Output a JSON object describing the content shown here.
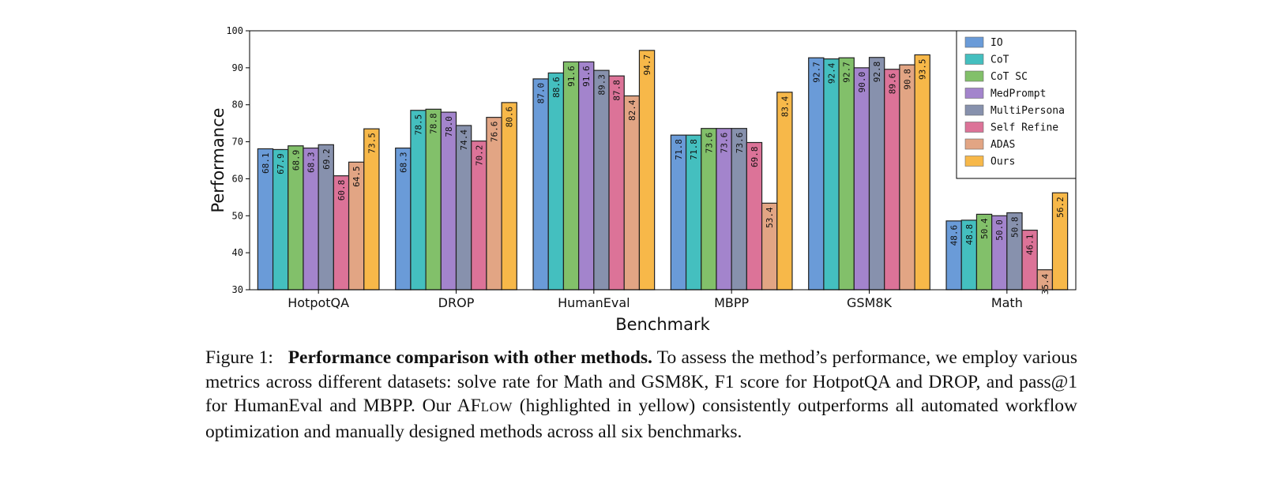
{
  "chart_data": {
    "type": "bar",
    "categories": [
      "HotpotQA",
      "DROP",
      "HumanEval",
      "MBPP",
      "GSM8K",
      "Math"
    ],
    "series": [
      {
        "name": "IO",
        "color": "#6a9bd8",
        "values": [
          68.1,
          68.3,
          87.0,
          71.8,
          92.7,
          48.6
        ]
      },
      {
        "name": "CoT",
        "color": "#44bfbf",
        "values": [
          67.9,
          78.5,
          88.6,
          71.8,
          92.4,
          48.8
        ]
      },
      {
        "name": "CoT SC",
        "color": "#82c06a",
        "values": [
          68.9,
          78.8,
          91.6,
          73.6,
          92.7,
          50.4
        ]
      },
      {
        "name": "MedPrompt",
        "color": "#a384cc",
        "values": [
          68.3,
          78.0,
          91.6,
          73.6,
          90.0,
          50.0
        ]
      },
      {
        "name": "MultiPersona",
        "color": "#8791ad",
        "values": [
          69.2,
          74.4,
          89.3,
          73.6,
          92.8,
          50.8
        ]
      },
      {
        "name": "Self Refine",
        "color": "#dc7398",
        "values": [
          60.8,
          70.2,
          87.8,
          69.8,
          89.6,
          46.1
        ]
      },
      {
        "name": "ADAS",
        "color": "#e2a584",
        "values": [
          64.5,
          76.6,
          82.4,
          53.4,
          90.8,
          35.4
        ]
      },
      {
        "name": "Ours",
        "color": "#f7b849",
        "values": [
          73.5,
          80.6,
          94.7,
          83.4,
          93.5,
          56.2
        ]
      }
    ],
    "title": "",
    "xlabel": "Benchmark",
    "ylabel": "Performance",
    "ylim": [
      30,
      100
    ],
    "yticks": [
      30,
      40,
      50,
      60,
      70,
      80,
      90,
      100
    ],
    "legend_position": "top-right",
    "grid": false
  },
  "caption": {
    "label": "Figure 1:",
    "bold": "Performance comparison with other methods.",
    "text_before_name": "To assess the method’s performance, we employ various metrics across different datasets: solve rate for Math and GSM8K, F1 score for HotpotQA and DROP, and pass@1 for HumanEval and MBPP. Our",
    "name_cap": "AF",
    "name_small": "LOW",
    "text_after_name": "(highlighted in yellow) consistently outperforms all automated workflow optimization and manually designed methods across all six benchmarks."
  }
}
